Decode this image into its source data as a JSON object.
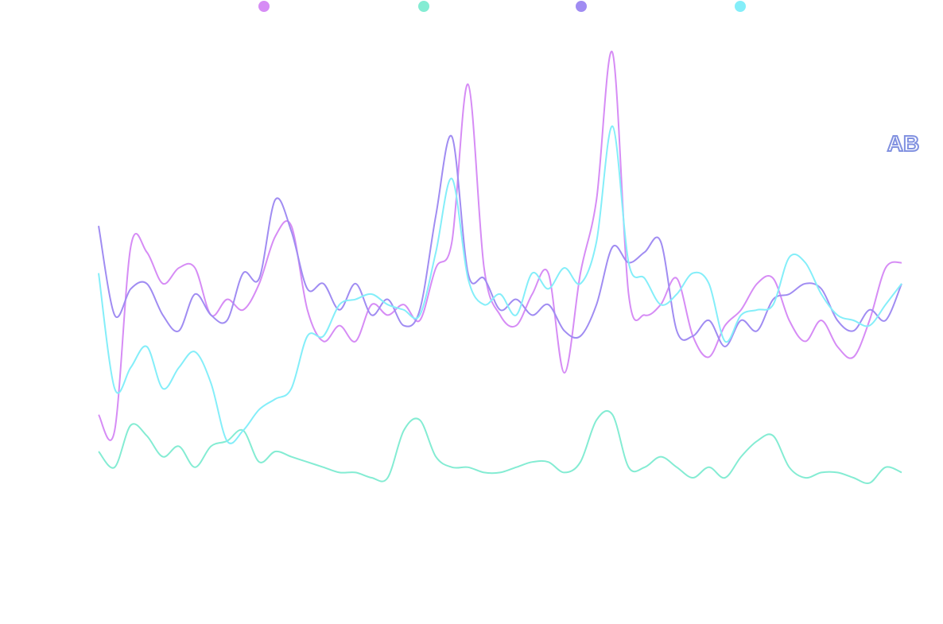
{
  "chart_data": {
    "type": "line",
    "title": "",
    "xlabel": "",
    "ylabel": "",
    "grid": false,
    "legend_position": "top",
    "ylim": [
      0,
      100
    ],
    "x": [
      0,
      2,
      4,
      6,
      8,
      10,
      12,
      14,
      16,
      18,
      20,
      22,
      24,
      26,
      28,
      30,
      32,
      34,
      36,
      38,
      40,
      42,
      44,
      46,
      48,
      50,
      52,
      54,
      56,
      58,
      60,
      62,
      64,
      66,
      68,
      70,
      72,
      74,
      76,
      78,
      80,
      82,
      84,
      86,
      88,
      90,
      92,
      94,
      96,
      98,
      100
    ],
    "series": [
      {
        "color": "#d68cf5",
        "values": [
          27,
          24,
          59,
          58,
          52,
          55,
          55,
          46,
          49,
          47,
          52,
          61,
          63,
          47,
          41,
          44,
          41,
          48,
          46,
          48,
          45,
          55,
          60,
          90,
          55,
          46,
          44,
          50,
          54,
          35,
          54,
          68,
          96,
          50,
          46,
          48,
          53,
          42,
          38,
          44,
          47,
          52,
          53,
          45,
          41,
          45,
          40,
          38,
          45,
          55,
          56
        ]
      },
      {
        "color": "#84ecd3",
        "values": [
          20,
          17,
          25,
          23,
          19,
          21,
          17,
          21,
          22,
          24,
          18,
          20,
          19,
          18,
          17,
          16,
          16,
          15,
          15,
          24,
          26,
          19,
          17,
          17,
          16,
          16,
          17,
          18,
          18,
          16,
          18,
          26,
          27,
          17,
          17,
          19,
          17,
          15,
          17,
          15,
          19,
          22,
          23,
          17,
          15,
          16,
          16,
          15,
          14,
          17,
          16
        ]
      },
      {
        "color": "#a08cf2",
        "values": [
          63,
          46,
          51,
          52,
          46,
          43,
          50,
          46,
          45,
          54,
          53,
          68,
          62,
          51,
          52,
          47,
          52,
          46,
          49,
          44,
          47,
          65,
          80,
          54,
          53,
          47,
          49,
          46,
          48,
          43,
          42,
          48,
          59,
          56,
          58,
          60,
          43,
          42,
          45,
          40,
          45,
          43,
          49,
          50,
          52,
          51,
          45,
          43,
          47,
          45,
          52
        ]
      },
      {
        "color": "#84eef9",
        "values": [
          54,
          32,
          36,
          40,
          32,
          36,
          39,
          33,
          22,
          24,
          28,
          30,
          32,
          42,
          42,
          48,
          49,
          50,
          48,
          47,
          46,
          58,
          72,
          53,
          48,
          50,
          46,
          54,
          51,
          55,
          52,
          60,
          82,
          56,
          53,
          48,
          50,
          54,
          52,
          41,
          46,
          47,
          48,
          57,
          56,
          50,
          46,
          45,
          44,
          48,
          52
        ]
      }
    ]
  },
  "watermark": "AB"
}
